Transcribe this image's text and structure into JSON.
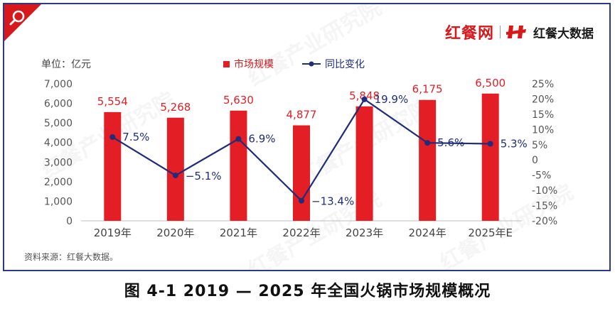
{
  "brand": {
    "name": "红餐网",
    "sub_name": "红餐大数据",
    "colors": {
      "red": "#d7191c",
      "navy": "#2b3a8c"
    }
  },
  "watermark_text": "红餐产业研究院",
  "unit_label": "单位：亿元",
  "source_label": "资料来源：红餐大数据。",
  "caption": "图 4-1    2019 — 2025 年全国火锅市场规模概况",
  "chart_data": {
    "type": "bar",
    "categories": [
      "2019年",
      "2020年",
      "2021年",
      "2022年",
      "2023年",
      "2024年",
      "2025年E"
    ],
    "series": [
      {
        "name": "市场规模",
        "type": "bar",
        "axis": "left",
        "color": "#e31e24",
        "values": [
          5554,
          5268,
          5630,
          4877,
          5848,
          6175,
          6500
        ],
        "labels": [
          "5,554",
          "5,268",
          "5,630",
          "4,877",
          "5,848",
          "6,175",
          "6,500"
        ]
      },
      {
        "name": "同比变化",
        "type": "line",
        "axis": "right",
        "color": "#1f2d7a",
        "values": [
          7.5,
          -5.1,
          6.9,
          -13.4,
          19.9,
          5.6,
          5.3
        ],
        "labels": [
          "7.5%",
          "−5.1%",
          "6.9%",
          "−13.4%",
          "19.9%",
          "5.6%",
          "5.3%"
        ]
      }
    ],
    "y_left": {
      "ylim": [
        0,
        7000
      ],
      "ticks": [
        0,
        1000,
        2000,
        3000,
        4000,
        5000,
        6000,
        7000
      ],
      "tick_labels": [
        "0",
        "1,000",
        "2,000",
        "3,000",
        "4,000",
        "5,000",
        "6,000",
        "7,000"
      ]
    },
    "y_right": {
      "ylim": [
        -20,
        25
      ],
      "ticks": [
        -20,
        -15,
        -10,
        -5,
        0,
        5,
        10,
        15,
        20,
        25
      ],
      "tick_labels": [
        "-20%",
        "-15%",
        "-10%",
        "-5%",
        "0",
        "5%",
        "10%",
        "15%",
        "20%",
        "25%"
      ]
    },
    "grid": false,
    "legend_position": "top-center"
  }
}
